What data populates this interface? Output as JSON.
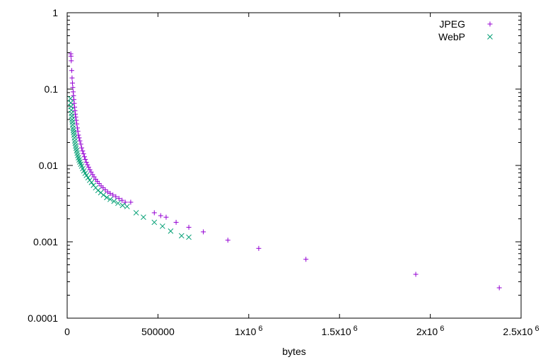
{
  "chart_data": {
    "type": "scatter",
    "xlabel": "bytes",
    "ylabel": "",
    "title": "",
    "xlim": [
      0,
      2500000
    ],
    "ylim": [
      0.0001,
      1
    ],
    "yscale": "log",
    "grid": false,
    "legend_position": "top-right",
    "x_tick_labels": [
      {
        "base": "0",
        "exp": ""
      },
      {
        "base": "500000",
        "exp": ""
      },
      {
        "base": "1x10",
        "exp": "6"
      },
      {
        "base": "1.5x10",
        "exp": "6"
      },
      {
        "base": "2x10",
        "exp": "6"
      },
      {
        "base": "2.5x10",
        "exp": "6"
      }
    ],
    "x_tick_values": [
      0,
      500000,
      1000000,
      1500000,
      2000000,
      2500000
    ],
    "y_tick_labels": [
      "1",
      "0.1",
      "0.01",
      "0.001",
      "0.0001"
    ],
    "y_tick_values": [
      1,
      0.1,
      0.01,
      0.001,
      0.0001
    ],
    "series": [
      {
        "name": "JPEG",
        "marker": "+",
        "color": "#9400d3",
        "points": [
          [
            20000,
            0.29
          ],
          [
            21000,
            0.27
          ],
          [
            22500,
            0.235
          ],
          [
            25000,
            0.175
          ],
          [
            27000,
            0.14
          ],
          [
            29000,
            0.12
          ],
          [
            31000,
            0.105
          ],
          [
            33000,
            0.092
          ],
          [
            35000,
            0.082
          ],
          [
            37000,
            0.073
          ],
          [
            39000,
            0.065
          ],
          [
            41000,
            0.058
          ],
          [
            43000,
            0.052
          ],
          [
            45000,
            0.047
          ],
          [
            47000,
            0.043
          ],
          [
            50000,
            0.039
          ],
          [
            53000,
            0.035
          ],
          [
            56000,
            0.031
          ],
          [
            59000,
            0.028
          ],
          [
            62000,
            0.025
          ],
          [
            66000,
            0.023
          ],
          [
            70000,
            0.021
          ],
          [
            75000,
            0.019
          ],
          [
            80000,
            0.017
          ],
          [
            85000,
            0.0155
          ],
          [
            90000,
            0.0142
          ],
          [
            95000,
            0.013
          ],
          [
            100000,
            0.012
          ],
          [
            106000,
            0.011
          ],
          [
            112000,
            0.0102
          ],
          [
            118000,
            0.0095
          ],
          [
            125000,
            0.0088
          ],
          [
            132000,
            0.0082
          ],
          [
            140000,
            0.0076
          ],
          [
            148000,
            0.0071
          ],
          [
            157000,
            0.0066
          ],
          [
            166000,
            0.0062
          ],
          [
            176000,
            0.0058
          ],
          [
            187000,
            0.0054
          ],
          [
            198000,
            0.0051
          ],
          [
            210000,
            0.0048
          ],
          [
            223000,
            0.0045
          ],
          [
            237000,
            0.0043
          ],
          [
            252000,
            0.0041
          ],
          [
            268000,
            0.0039
          ],
          [
            285000,
            0.0037
          ],
          [
            302000,
            0.0035
          ],
          [
            320000,
            0.0033
          ],
          [
            350000,
            0.0033
          ],
          [
            480000,
            0.0024
          ],
          [
            515000,
            0.0022
          ],
          [
            545000,
            0.0021
          ],
          [
            600000,
            0.0018
          ],
          [
            670000,
            0.00155
          ],
          [
            750000,
            0.00135
          ],
          [
            885000,
            0.00105
          ],
          [
            1055000,
            0.00082
          ],
          [
            1315000,
            0.00059
          ],
          [
            1920000,
            0.000375
          ],
          [
            2380000,
            0.00025
          ]
        ]
      },
      {
        "name": "WebP",
        "marker": "x",
        "color": "#009e73",
        "points": [
          [
            18000,
            0.075
          ],
          [
            19500,
            0.066
          ],
          [
            21000,
            0.059
          ],
          [
            22500,
            0.053
          ],
          [
            24000,
            0.048
          ],
          [
            25500,
            0.044
          ],
          [
            27000,
            0.04
          ],
          [
            28500,
            0.037
          ],
          [
            30000,
            0.034
          ],
          [
            32000,
            0.031
          ],
          [
            34000,
            0.029
          ],
          [
            36000,
            0.027
          ],
          [
            38000,
            0.025
          ],
          [
            40000,
            0.023
          ],
          [
            42000,
            0.021
          ],
          [
            44000,
            0.0195
          ],
          [
            46500,
            0.018
          ],
          [
            49000,
            0.0168
          ],
          [
            52000,
            0.0156
          ],
          [
            55000,
            0.0145
          ],
          [
            58000,
            0.0135
          ],
          [
            62000,
            0.0126
          ],
          [
            66000,
            0.0118
          ],
          [
            70000,
            0.0111
          ],
          [
            75000,
            0.0104
          ],
          [
            80000,
            0.0098
          ],
          [
            86000,
            0.0091
          ],
          [
            92000,
            0.0085
          ],
          [
            99000,
            0.0079
          ],
          [
            106000,
            0.0074
          ],
          [
            115000,
            0.0069
          ],
          [
            124000,
            0.0064
          ],
          [
            134000,
            0.006
          ],
          [
            145000,
            0.0055
          ],
          [
            157000,
            0.0051
          ],
          [
            170000,
            0.0047
          ],
          [
            185000,
            0.0044
          ],
          [
            200000,
            0.0041
          ],
          [
            218000,
            0.0038
          ],
          [
            237000,
            0.0036
          ],
          [
            258000,
            0.0034
          ],
          [
            280000,
            0.0032
          ],
          [
            305000,
            0.003
          ],
          [
            330000,
            0.0029
          ],
          [
            380000,
            0.0024
          ],
          [
            420000,
            0.0021
          ],
          [
            480000,
            0.0018
          ],
          [
            525000,
            0.0016
          ],
          [
            570000,
            0.00138
          ],
          [
            630000,
            0.0012
          ],
          [
            670000,
            0.00115
          ]
        ]
      }
    ]
  }
}
